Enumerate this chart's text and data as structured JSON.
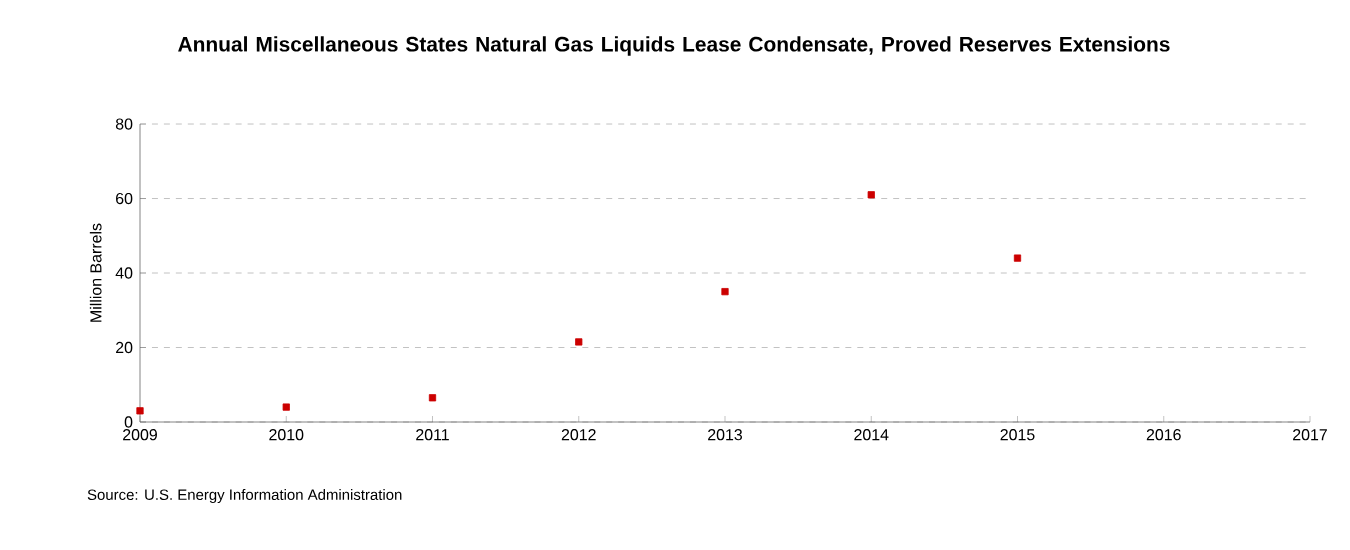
{
  "chart_data": {
    "type": "scatter",
    "title": "Annual Miscellaneous States Natural Gas Liquids Lease Condensate, Proved Reserves Extensions",
    "ylabel": "Million Barrels",
    "x": [
      2009,
      2010,
      2011,
      2012,
      2013,
      2014,
      2015
    ],
    "values": [
      3,
      4,
      6.5,
      21.5,
      35,
      61,
      44
    ],
    "color": "#cc0000",
    "marker": "square",
    "xlim": [
      2009,
      2017
    ],
    "xticks": [
      2009,
      2010,
      2011,
      2012,
      2013,
      2014,
      2015,
      2016,
      2017
    ],
    "ylim": [
      0,
      80
    ],
    "yticks": [
      0,
      20,
      40,
      60,
      80
    ],
    "grid": "y",
    "annotations": [
      "Source: U.S. Energy Information Administration"
    ]
  }
}
